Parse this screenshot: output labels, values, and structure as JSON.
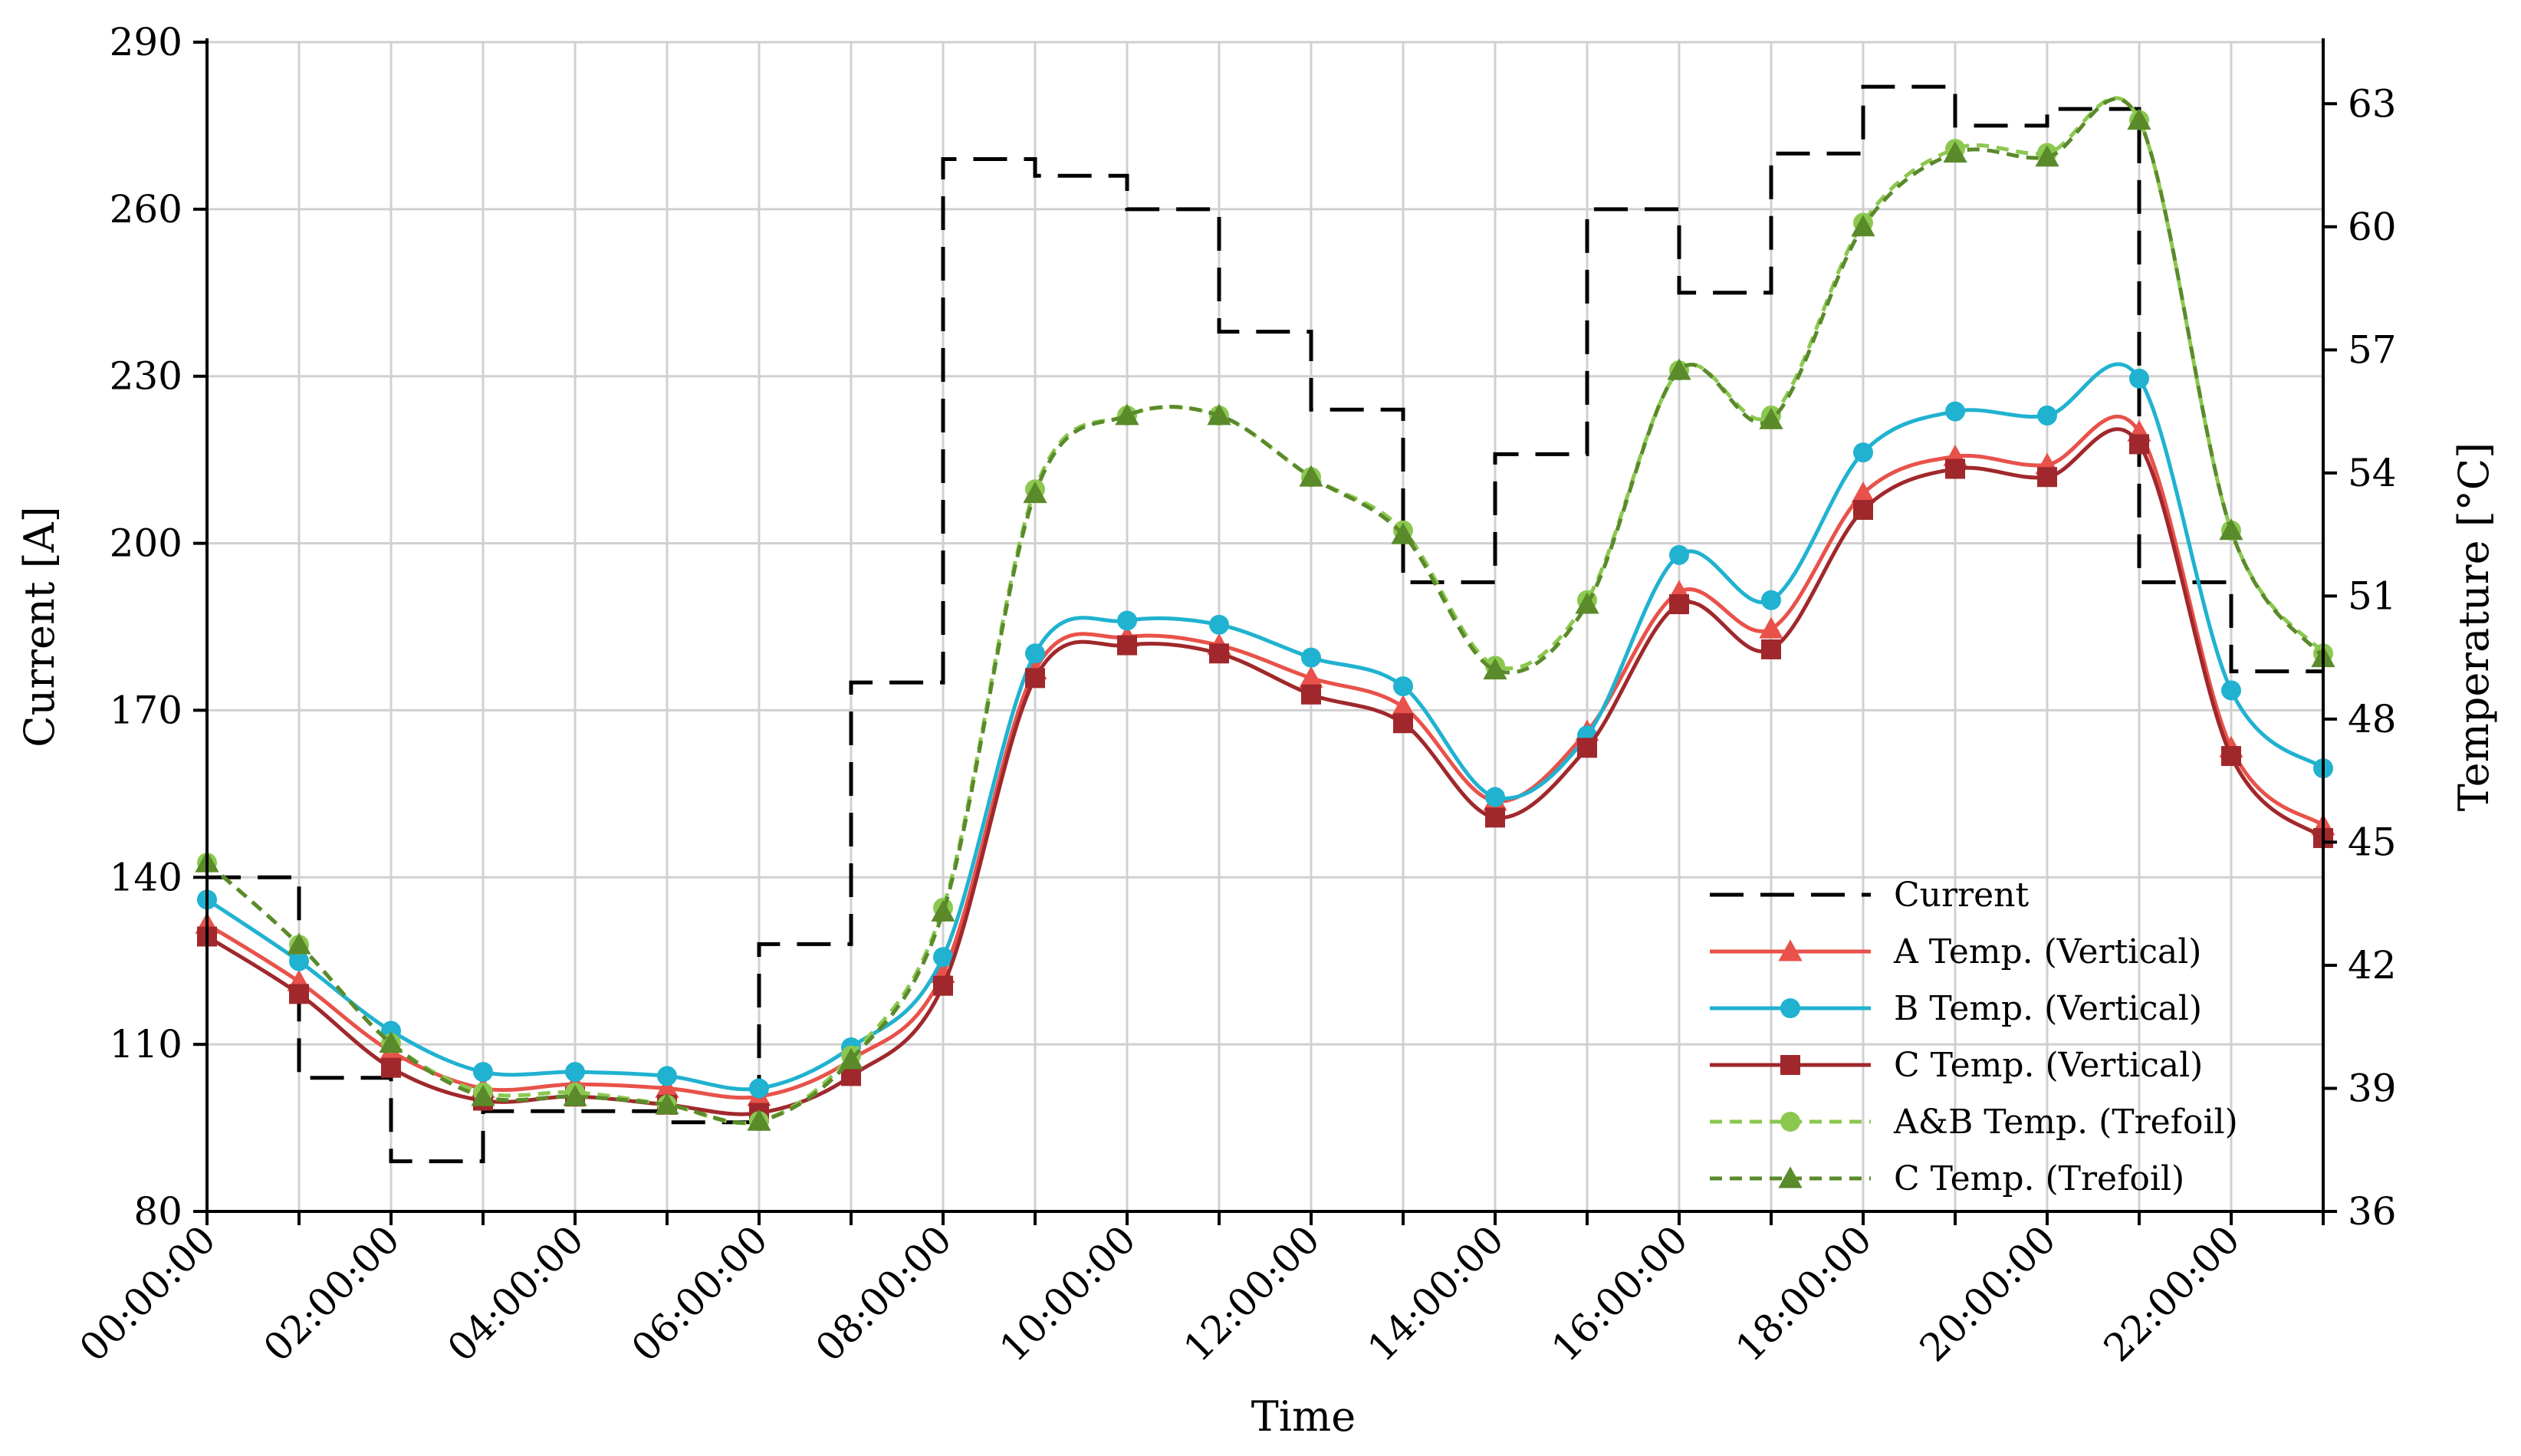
{
  "chart_data": {
    "type": "line",
    "xlabel": "Time",
    "ylabel": "Current [A]",
    "y2label": "Temperature [°C]",
    "ylim": [
      80,
      290
    ],
    "y2lim": [
      36,
      64.5
    ],
    "yticks": [
      80,
      110,
      140,
      170,
      200,
      230,
      260,
      290
    ],
    "y2ticks": [
      36,
      39,
      42,
      45,
      48,
      51,
      54,
      57,
      60,
      63
    ],
    "xlim": [
      0,
      23
    ],
    "x": [
      0,
      1,
      2,
      3,
      4,
      5,
      6,
      7,
      8,
      9,
      10,
      11,
      12,
      13,
      14,
      15,
      16,
      17,
      18,
      19,
      20,
      21,
      22,
      23
    ],
    "xtick_positions": [
      0,
      2,
      4,
      6,
      8,
      10,
      12,
      14,
      16,
      18,
      20,
      22
    ],
    "xtick_labels": [
      "00:00:00",
      "02:00:00",
      "04:00:00",
      "06:00:00",
      "08:00:00",
      "10:00:00",
      "12:00:00",
      "14:00:00",
      "16:00:00",
      "18:00:00",
      "20:00:00",
      "22:00:00"
    ],
    "grid": true,
    "legend_position": "bottom-right",
    "current": {
      "name": "Current",
      "color": "#000000",
      "style": "dashed-step",
      "step_x": [
        0,
        1,
        2,
        3,
        4,
        5,
        6,
        7,
        8,
        9,
        10,
        11,
        12,
        13,
        14,
        15,
        16,
        17,
        18,
        19,
        20,
        21,
        22,
        23
      ],
      "step_values": [
        140,
        104,
        89,
        98,
        98,
        96,
        128,
        175,
        269,
        266,
        260,
        238,
        224,
        193,
        216,
        260,
        245,
        270,
        282,
        275,
        278,
        193,
        177,
        177
      ]
    },
    "series": [
      {
        "name": "A Temp. (Vertical)",
        "axis": "y2",
        "color": "#e8524a",
        "marker": "triangle",
        "style": "solid",
        "values": [
          43.0,
          41.6,
          39.9,
          39.0,
          39.1,
          39.0,
          38.8,
          39.7,
          41.8,
          49.2,
          50.0,
          49.8,
          49.0,
          48.3,
          46.0,
          47.7,
          51.1,
          50.2,
          53.5,
          54.4,
          54.2,
          55.0,
          47.3,
          45.4
        ]
      },
      {
        "name": "B Temp. (Vertical)",
        "axis": "y2",
        "color": "#20b2d0",
        "marker": "circle",
        "style": "solid",
        "values": [
          43.6,
          42.1,
          40.4,
          39.4,
          39.4,
          39.3,
          39.0,
          40.0,
          42.2,
          49.6,
          50.4,
          50.3,
          49.5,
          48.8,
          46.1,
          47.6,
          52.0,
          50.9,
          54.5,
          55.5,
          55.4,
          56.3,
          48.7,
          46.8
        ]
      },
      {
        "name": "C Temp. (Vertical)",
        "axis": "y2",
        "color": "#a0282c",
        "marker": "square",
        "style": "solid",
        "values": [
          42.7,
          41.3,
          39.5,
          38.7,
          38.8,
          38.6,
          38.4,
          39.3,
          41.5,
          49.0,
          49.8,
          49.6,
          48.6,
          47.9,
          45.6,
          47.3,
          50.8,
          49.7,
          53.1,
          54.1,
          53.9,
          54.7,
          47.1,
          45.1
        ]
      },
      {
        "name": "A&B Temp. (Trefoil)",
        "axis": "y2",
        "color": "#8cc850",
        "marker": "circle",
        "style": "dashed",
        "values": [
          44.5,
          42.5,
          40.1,
          38.9,
          38.9,
          38.6,
          38.2,
          39.8,
          43.4,
          53.6,
          55.4,
          55.4,
          53.9,
          52.6,
          49.3,
          50.9,
          56.5,
          55.4,
          60.1,
          61.9,
          61.8,
          62.6,
          52.6,
          49.6
        ]
      },
      {
        "name": "C Temp. (Trefoil)",
        "axis": "y2",
        "color": "#5a8a2a",
        "marker": "triangle",
        "style": "dashed",
        "values": [
          44.5,
          42.5,
          40.1,
          38.8,
          38.8,
          38.6,
          38.2,
          39.7,
          43.3,
          53.5,
          55.4,
          55.4,
          53.9,
          52.5,
          49.2,
          50.8,
          56.5,
          55.3,
          60.0,
          61.8,
          61.7,
          62.6,
          52.6,
          49.5
        ]
      }
    ]
  }
}
